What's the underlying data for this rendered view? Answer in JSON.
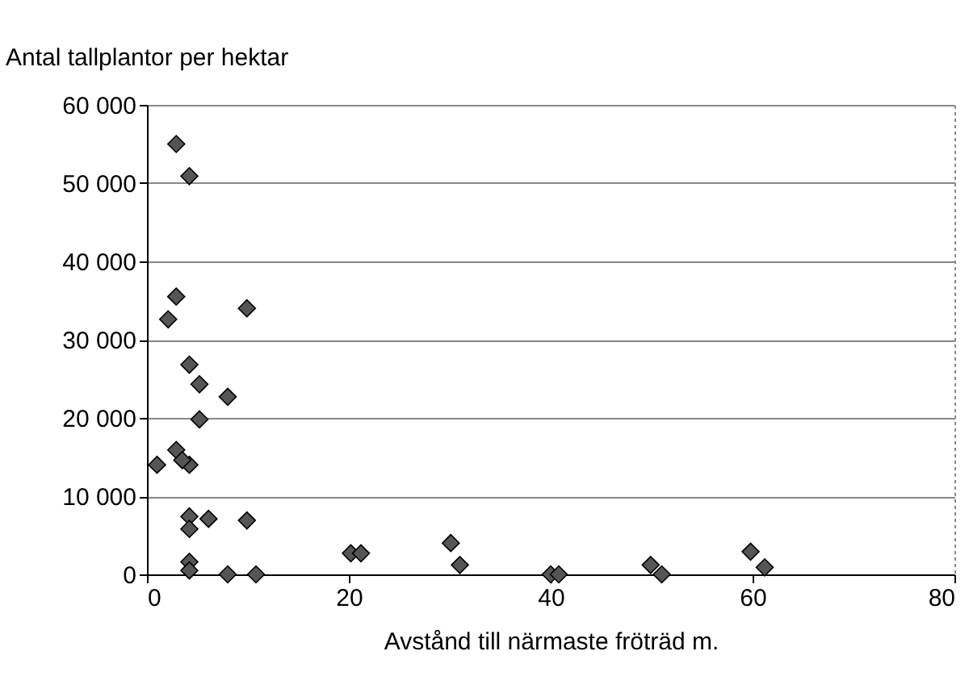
{
  "chart_data": {
    "type": "scatter",
    "ylabel": "Antal tallplantor per hektar",
    "xlabel": "Avstånd till närmaste fröträd m.",
    "series": [
      {
        "color": "#555555",
        "x": [
          2.9,
          4.2,
          2.9,
          2.1,
          9.9,
          4.2,
          5.2,
          8.0,
          5.2,
          2.9,
          1.0,
          4.2,
          3.5,
          4.2,
          4.2,
          6.1,
          9.9,
          4.2,
          4.2,
          8.0,
          10.8,
          20.2,
          21.2,
          30.1,
          31.0,
          40.0,
          40.8,
          49.9,
          51.0,
          59.8,
          61.2
        ],
        "values": [
          55000,
          50900,
          35500,
          32600,
          34000,
          26800,
          24300,
          22700,
          19800,
          15900,
          14000,
          14000,
          14600,
          7400,
          5800,
          7100,
          6900,
          1600,
          500,
          0,
          0,
          2700,
          2700,
          4000,
          1200,
          0,
          0,
          1200,
          0,
          2900,
          900
        ]
      }
    ],
    "xlim": [
      0,
      80
    ],
    "xticks": [
      0,
      20,
      40,
      60,
      80
    ],
    "ylim": [
      0,
      60000
    ],
    "yticks": [
      {
        "value": 0,
        "label": "0"
      },
      {
        "value": 10000,
        "label": "10 000"
      },
      {
        "value": 20000,
        "label": "20 000"
      },
      {
        "value": 30000,
        "label": "30 000"
      },
      {
        "value": 40000,
        "label": "40 000"
      },
      {
        "value": 50000,
        "label": "50 000"
      },
      {
        "value": 60000,
        "label": "60 000"
      }
    ],
    "grid": "y",
    "marker": "diamond",
    "legend": false
  }
}
